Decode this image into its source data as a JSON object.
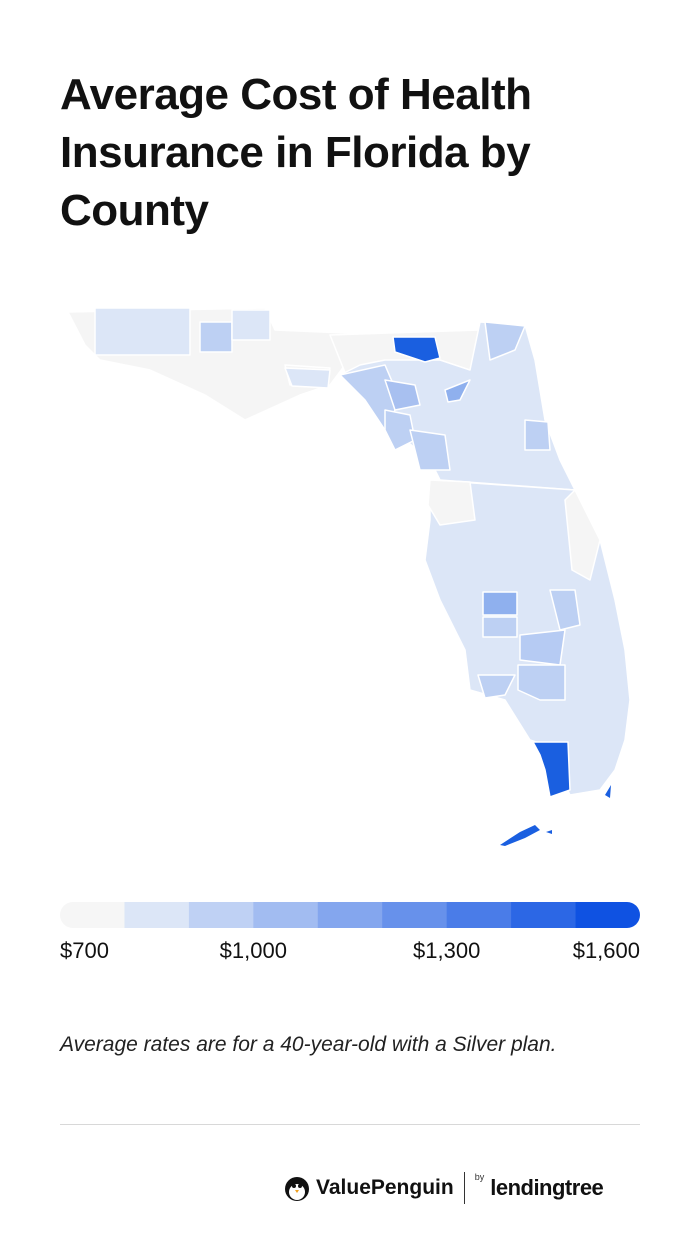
{
  "header": {
    "title": "Average Cost of Health Insurance in Florida by County"
  },
  "legend": {
    "min": 700,
    "max": 1600,
    "colors": [
      "#f6f6f6",
      "#dce6f7",
      "#bfd1f4",
      "#a2bcf1",
      "#84a6ee",
      "#6791eb",
      "#4a7ce8",
      "#2c67e5",
      "#0f52e2"
    ],
    "ticks": [
      {
        "value": 700,
        "label": "$700"
      },
      {
        "value": 1000,
        "label": "$1,000"
      },
      {
        "value": 1300,
        "label": "$1,300"
      },
      {
        "value": 1600,
        "label": "$1,600"
      }
    ]
  },
  "note": "Average rates are for a 40-year-old with a Silver plan.",
  "footer": {
    "brand": "ValuePenguin",
    "by": "by",
    "partner": "lendingtree"
  }
}
